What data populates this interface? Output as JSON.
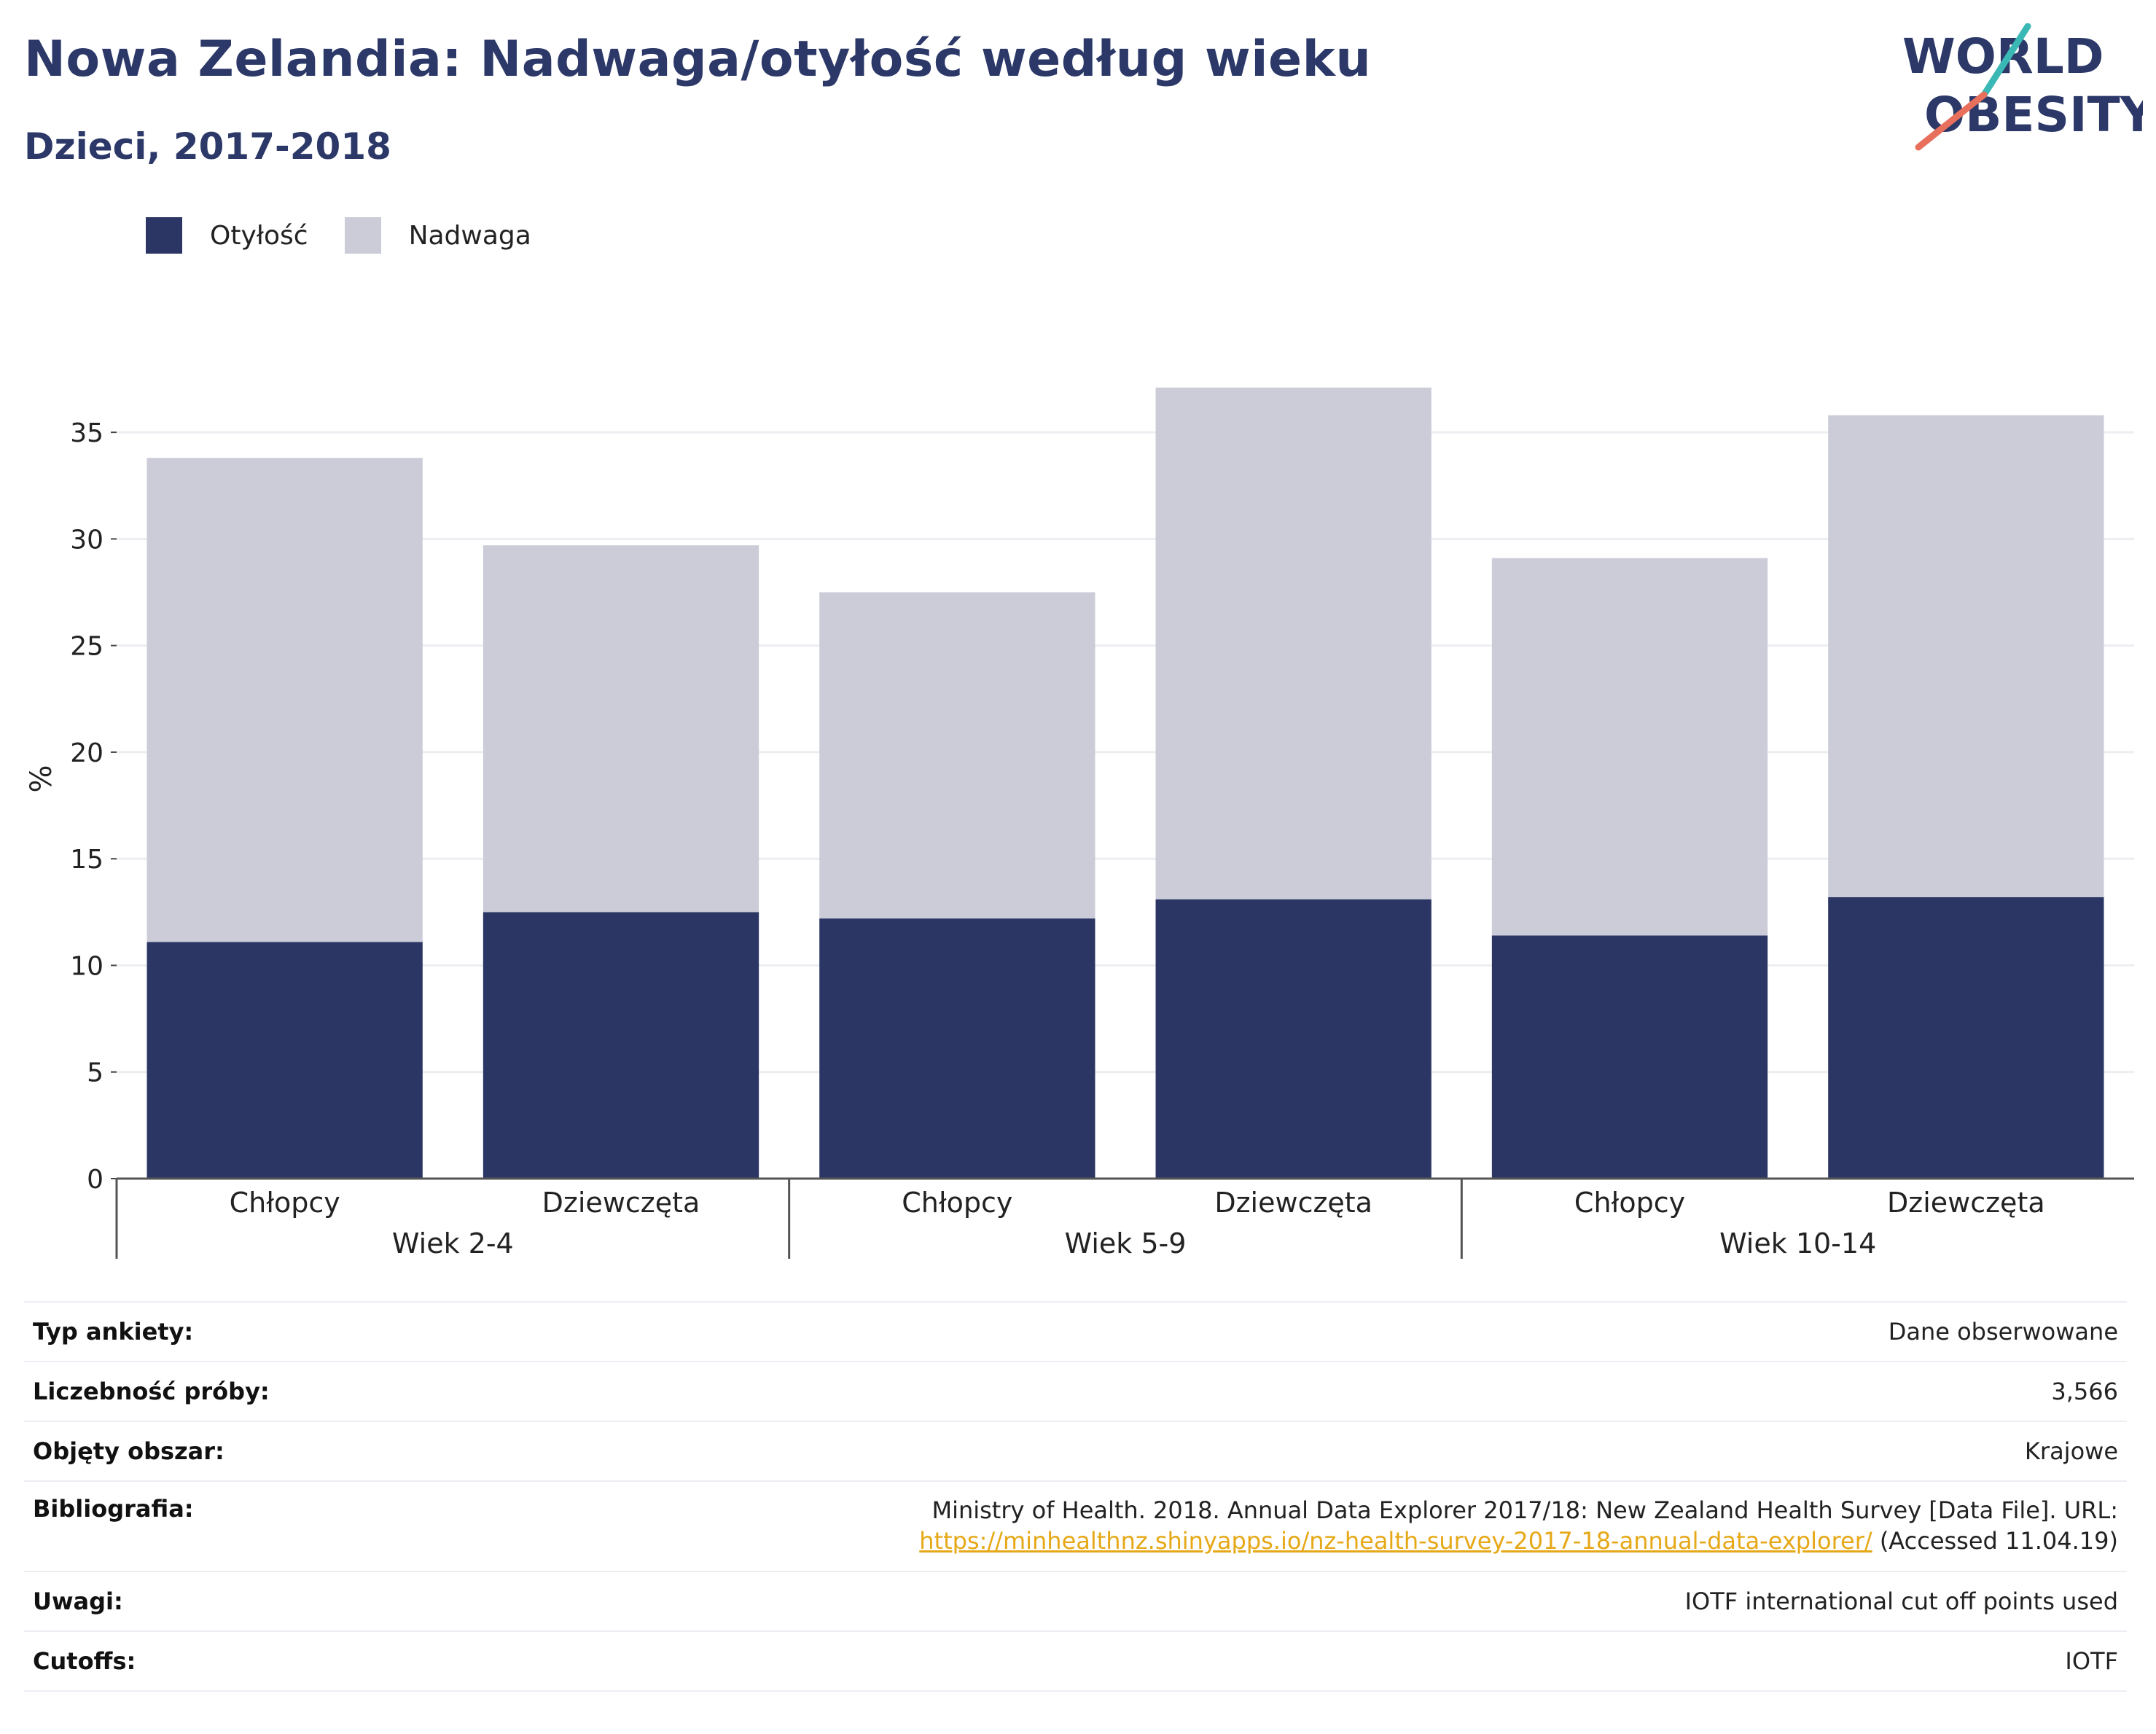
{
  "title": "Nowa Zelandia: Nadwaga/otyłość według wieku",
  "subtitle": "Dzieci, 2017-2018",
  "logo": {
    "line1": "WORLD",
    "line2": "OBESITY"
  },
  "colors": {
    "obesity": "#2b3664",
    "overweight": "#cbccd8",
    "title": "#2b3868",
    "link": "#e6a817",
    "logo_teal": "#3ab8b5",
    "logo_coral": "#e86f5c"
  },
  "chart_data": {
    "type": "bar",
    "stacked": true,
    "ylabel": "%",
    "ylim": [
      0,
      37.5
    ],
    "yticks": [
      0,
      5,
      10,
      15,
      20,
      25,
      30,
      35
    ],
    "categories": [
      "Chłopcy",
      "Dziewczęta",
      "Chłopcy",
      "Dziewczęta",
      "Chłopcy",
      "Dziewczęta"
    ],
    "groups": [
      {
        "label": "Wiek 2-4",
        "span": [
          0,
          1
        ]
      },
      {
        "label": "Wiek 5-9",
        "span": [
          2,
          3
        ]
      },
      {
        "label": "Wiek 10-14",
        "span": [
          4,
          5
        ]
      }
    ],
    "series": [
      {
        "name": "Otyłość",
        "values": [
          11.1,
          12.5,
          12.2,
          13.1,
          11.4,
          13.2
        ]
      },
      {
        "name": "Nadwaga",
        "values": [
          22.7,
          17.2,
          15.3,
          24.0,
          17.7,
          22.6
        ]
      }
    ],
    "grid": true,
    "legend_position": "top-left"
  },
  "info": [
    {
      "key": "Typ ankiety:",
      "value": "Dane obserwowane"
    },
    {
      "key": "Liczebność próby:",
      "value": "3,566"
    },
    {
      "key": "Objęty obszar:",
      "value": "Krajowe"
    },
    {
      "key": "Bibliografia:",
      "value": "Ministry of Health. 2018. Annual Data Explorer 2017/18: New Zealand Health Survey [Data File]. URL:",
      "link": "https://minhealthnz.shinyapps.io/nz-health-survey-2017-18-annual-data-explorer/",
      "suffix": " (Accessed 11.04.19)"
    },
    {
      "key": "Uwagi:",
      "value": "IOTF international cut off points used"
    },
    {
      "key": "Cutoffs:",
      "value": "IOTF"
    }
  ]
}
